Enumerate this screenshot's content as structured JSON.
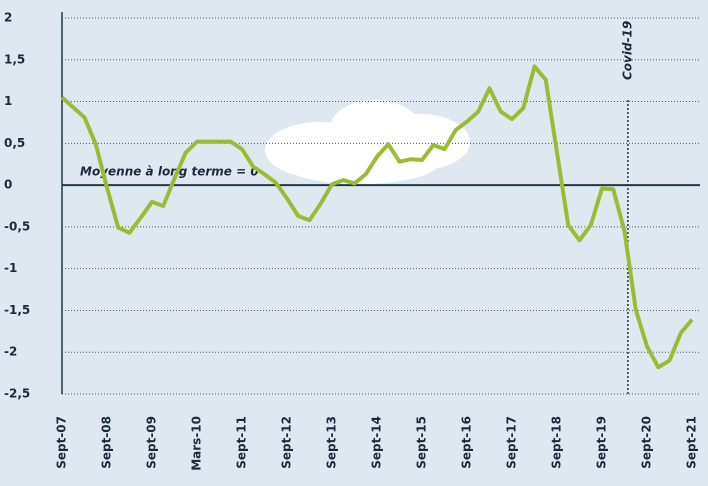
{
  "chart_data": {
    "type": "line",
    "categories": [
      "Sept-07",
      null,
      null,
      null,
      "Sept-08",
      null,
      null,
      null,
      "Sept-09",
      null,
      null,
      null,
      "Mars-10",
      null,
      null,
      null,
      "Sept-11",
      null,
      null,
      null,
      "Sept-12",
      null,
      null,
      null,
      "Sept-13",
      null,
      null,
      null,
      "Sept-14",
      null,
      null,
      null,
      "Sept-15",
      null,
      null,
      null,
      "Sept-16",
      null,
      null,
      null,
      "Sept-17",
      null,
      null,
      null,
      "Sept-18",
      null,
      null,
      null,
      "Sept-19",
      null,
      null,
      null,
      "Sept-20",
      null,
      null,
      null,
      "Sept-21"
    ],
    "values": [
      1.05,
      0.93,
      0.81,
      0.49,
      -0.03,
      -0.51,
      -0.57,
      -0.39,
      -0.2,
      -0.25,
      0.08,
      0.39,
      0.52,
      0.52,
      0.52,
      0.52,
      0.43,
      0.22,
      0.13,
      0.03,
      -0.16,
      -0.37,
      -0.42,
      -0.22,
      0.01,
      0.06,
      0.02,
      0.13,
      0.34,
      0.49,
      0.28,
      0.31,
      0.3,
      0.48,
      0.43,
      0.66,
      0.76,
      0.88,
      1.16,
      0.88,
      0.79,
      0.92,
      1.42,
      1.26,
      0.39,
      -0.48,
      -0.66,
      -0.48,
      -0.04,
      -0.05,
      -0.55,
      -1.49,
      -1.93,
      -2.18,
      -2.1,
      -1.77,
      -1.61
    ],
    "color": "#9bbb35",
    "ylim": [
      -2.5,
      2
    ],
    "yticks": [
      {
        "value": -2.5,
        "label": "-2,5"
      },
      -2,
      {
        "value": -1.5,
        "label": "-1,5"
      },
      -1,
      {
        "value": -0.5,
        "label": "-0,5"
      },
      0,
      {
        "value": 0.5,
        "label": "0,5"
      },
      1,
      {
        "value": 1.5,
        "label": "1,5"
      },
      2
    ],
    "grid": true,
    "annotations": [
      "Moyenne à long terme = 0",
      "Covid-19"
    ]
  }
}
